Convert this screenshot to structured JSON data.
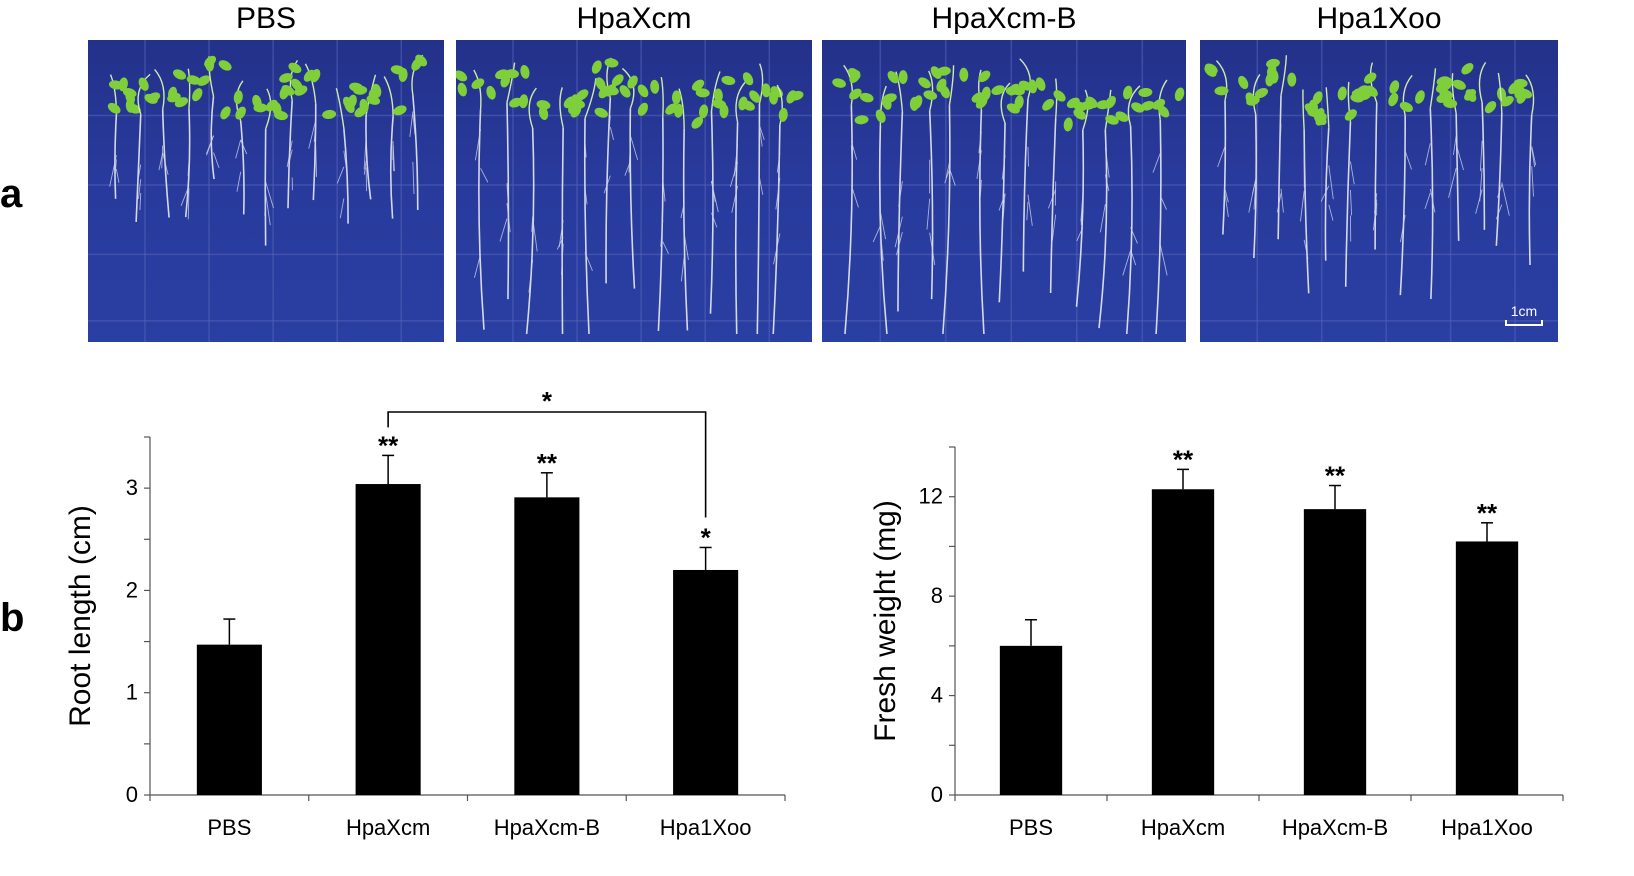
{
  "panel_labels": {
    "a": "a",
    "b": "b"
  },
  "photos": [
    {
      "title": "PBS"
    },
    {
      "title": "HpaXcm"
    },
    {
      "title": "HpaXcm-B"
    },
    {
      "title": "Hpa1Xoo",
      "scale_bar": "1cm"
    }
  ],
  "colors": {
    "photo_bg": "#2a3ca0",
    "leaf": "#7fcf3a",
    "root": "#e6e8f0",
    "bar": "#000000"
  },
  "chart_data": [
    {
      "type": "bar",
      "categories": [
        "PBS",
        "HpaXcm",
        "HpaXcm-B",
        "Hpa1Xoo"
      ],
      "values": [
        1.47,
        3.04,
        2.91,
        2.2
      ],
      "errors": [
        0.25,
        0.28,
        0.24,
        0.22
      ],
      "significance": [
        "",
        "**",
        "**",
        "*"
      ],
      "comparison": {
        "from": "HpaXcm",
        "to": "Hpa1Xoo",
        "label": "*"
      },
      "ylabel": "Root length (cm)",
      "ylim": [
        0,
        3.5
      ],
      "yticks": [
        "0",
        "1",
        "2",
        "3"
      ]
    },
    {
      "type": "bar",
      "categories": [
        "PBS",
        "HpaXcm",
        "HpaXcm-B",
        "Hpa1Xoo"
      ],
      "values": [
        6.0,
        12.3,
        11.5,
        10.2
      ],
      "errors": [
        1.05,
        0.8,
        0.95,
        0.75
      ],
      "significance": [
        "",
        "**",
        "**",
        "**"
      ],
      "ylabel": "Fresh weight (mg)",
      "ylim": [
        0,
        14
      ],
      "yticks": [
        "0",
        "4",
        "8",
        "12"
      ]
    }
  ]
}
